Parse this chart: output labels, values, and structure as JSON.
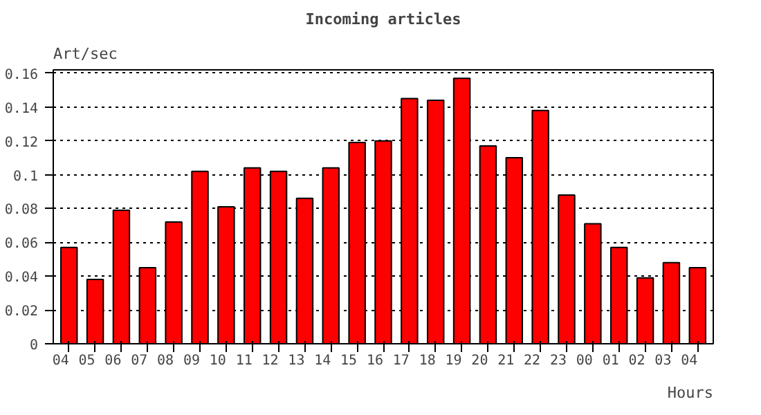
{
  "chart_data": {
    "type": "bar",
    "title": "Incoming articles",
    "ylabel": "Art/sec",
    "xlabel": "Hours",
    "categories": [
      "04",
      "05",
      "06",
      "07",
      "08",
      "09",
      "10",
      "11",
      "12",
      "13",
      "14",
      "15",
      "16",
      "17",
      "18",
      "19",
      "20",
      "21",
      "22",
      "23",
      "00",
      "01",
      "02",
      "03",
      "04"
    ],
    "values": [
      0.057,
      0.038,
      0.079,
      0.045,
      0.072,
      0.102,
      0.081,
      0.104,
      0.102,
      0.086,
      0.104,
      0.119,
      0.12,
      0.145,
      0.144,
      0.157,
      0.117,
      0.11,
      0.138,
      0.088,
      0.071,
      0.057,
      0.039,
      0.048,
      0.045
    ],
    "color": "#ff0000",
    "ylim": [
      0,
      0.162
    ],
    "yticks": [
      0,
      0.02,
      0.04,
      0.06,
      0.08,
      0.1,
      0.12,
      0.14,
      0.16
    ],
    "grid": "y",
    "line_style": "dotted"
  }
}
